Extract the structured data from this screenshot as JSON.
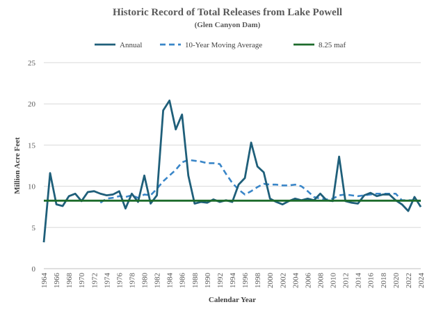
{
  "chart_data": {
    "type": "line",
    "title": "Historic Record of Total Releases from Lake Powell",
    "subtitle": "(Glen Canyon Dam)",
    "xlabel": "Calendar Year",
    "ylabel": "Million Acre Feet",
    "ylim": [
      0,
      25
    ],
    "yticks": [
      "0",
      "5",
      "10",
      "15",
      "20",
      "25"
    ],
    "xlim": [
      1964,
      2024
    ],
    "xticks": [
      "1964",
      "1966",
      "1968",
      "1970",
      "1972",
      "1974",
      "1976",
      "1978",
      "1980",
      "1982",
      "1984",
      "1986",
      "1988",
      "1990",
      "1992",
      "1994",
      "1996",
      "1998",
      "2000",
      "2002",
      "2004",
      "2006",
      "2008",
      "2010",
      "2012",
      "2014",
      "2016",
      "2018",
      "2020",
      "2022",
      "2024"
    ],
    "grid": "horizontal",
    "legend_position": "top",
    "series": [
      {
        "name": "Annual",
        "style": "solid",
        "color": "#1f5f7a",
        "x": [
          1964,
          1965,
          1966,
          1967,
          1968,
          1969,
          1970,
          1971,
          1972,
          1973,
          1974,
          1975,
          1976,
          1977,
          1978,
          1979,
          1980,
          1981,
          1982,
          1983,
          1984,
          1985,
          1986,
          1987,
          1988,
          1989,
          1990,
          1991,
          1992,
          1993,
          1994,
          1995,
          1996,
          1997,
          1998,
          1999,
          2000,
          2001,
          2002,
          2003,
          2004,
          2005,
          2006,
          2007,
          2008,
          2009,
          2010,
          2011,
          2012,
          2013,
          2014,
          2015,
          2016,
          2017,
          2018,
          2019,
          2020,
          2021,
          2022,
          2023,
          2024
        ],
        "y": [
          3.2,
          11.6,
          7.8,
          7.6,
          8.8,
          9.1,
          8.2,
          9.3,
          9.4,
          9.1,
          8.9,
          9.0,
          9.4,
          7.3,
          9.1,
          8.1,
          11.3,
          7.9,
          8.9,
          19.2,
          20.4,
          16.9,
          18.7,
          11.3,
          7.9,
          8.1,
          8.0,
          8.4,
          8.1,
          8.3,
          8.1,
          10.2,
          11.0,
          15.3,
          12.4,
          11.7,
          8.5,
          8.1,
          7.8,
          8.2,
          8.5,
          8.3,
          8.5,
          8.3,
          9.1,
          8.3,
          8.2,
          13.6,
          8.2,
          8.0,
          7.9,
          8.9,
          9.2,
          8.8,
          9.0,
          9.0,
          8.3,
          7.8,
          7.0,
          8.7,
          7.5
        ]
      },
      {
        "name": "10-Year Moving Average",
        "style": "dashed",
        "color": "#3a86c8",
        "x": [
          1973,
          1974,
          1975,
          1976,
          1977,
          1978,
          1979,
          1980,
          1981,
          1982,
          1983,
          1984,
          1985,
          1986,
          1987,
          1988,
          1989,
          1990,
          1991,
          1992,
          1993,
          1994,
          1995,
          1996,
          1997,
          1998,
          1999,
          2000,
          2001,
          2002,
          2003,
          2004,
          2005,
          2006,
          2007,
          2008,
          2009,
          2010,
          2011,
          2012,
          2013,
          2014,
          2015,
          2016,
          2017,
          2018,
          2019,
          2020,
          2021,
          2022,
          2023,
          2024
        ],
        "y": [
          8.0,
          8.5,
          8.6,
          8.8,
          8.7,
          8.9,
          8.6,
          9.0,
          8.9,
          9.7,
          10.6,
          11.3,
          12.0,
          12.9,
          13.2,
          13.1,
          13.0,
          12.8,
          12.8,
          12.7,
          11.5,
          10.4,
          9.6,
          9.0,
          9.4,
          9.9,
          10.3,
          10.2,
          10.2,
          10.1,
          10.1,
          10.2,
          10.0,
          9.4,
          8.7,
          8.5,
          8.4,
          8.5,
          8.9,
          9.0,
          8.9,
          8.8,
          8.9,
          9.0,
          9.1,
          9.1,
          9.1,
          9.1,
          8.3,
          8.3,
          8.3,
          8.2
        ]
      },
      {
        "name": "8.25 maf",
        "style": "solid",
        "color": "#1d6b2b",
        "x": [
          1964,
          2024
        ],
        "y": [
          8.25,
          8.25
        ]
      }
    ]
  }
}
